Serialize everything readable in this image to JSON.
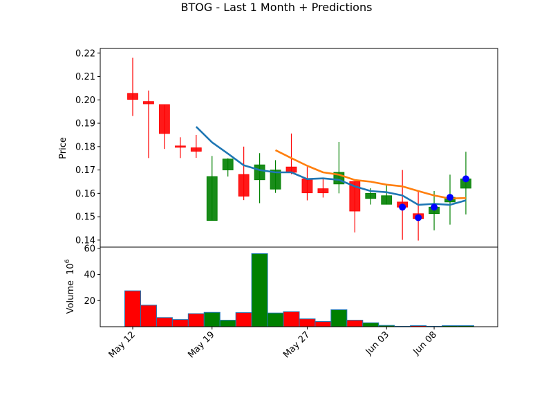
{
  "title": "BTOG - Last 1 Month + Predictions",
  "chart_data": [
    {
      "type": "candlestick",
      "ylabel": "Price",
      "ylim": [
        0.137,
        0.222
      ],
      "yticks": [
        "0.14",
        "0.15",
        "0.16",
        "0.17",
        "0.18",
        "0.19",
        "0.20",
        "0.21",
        "0.22"
      ],
      "ytick_values": [
        0.14,
        0.15,
        0.16,
        0.17,
        0.18,
        0.19,
        0.2,
        0.21,
        0.22
      ],
      "up_color": "#008000",
      "down_color": "#ff0000",
      "candles": [
        {
          "date": "2024-05-12",
          "open": 0.2028,
          "high": 0.218,
          "low": 0.1931,
          "close": 0.2002,
          "dir": "down"
        },
        {
          "date": "2024-05-13",
          "open": 0.1993,
          "high": 0.204,
          "low": 0.1751,
          "close": 0.1983,
          "dir": "down"
        },
        {
          "date": "2024-05-14",
          "open": 0.198,
          "high": 0.198,
          "low": 0.179,
          "close": 0.1856,
          "dir": "down"
        },
        {
          "date": "2024-05-15",
          "open": 0.1803,
          "high": 0.184,
          "low": 0.1751,
          "close": 0.1797,
          "dir": "down"
        },
        {
          "date": "2024-05-18",
          "open": 0.1795,
          "high": 0.185,
          "low": 0.1752,
          "close": 0.178,
          "dir": "down"
        },
        {
          "date": "2024-05-19",
          "open": 0.1484,
          "high": 0.176,
          "low": 0.1484,
          "close": 0.1672,
          "dir": "up"
        },
        {
          "date": "2024-05-20",
          "open": 0.17,
          "high": 0.175,
          "low": 0.1672,
          "close": 0.1747,
          "dir": "up"
        },
        {
          "date": "2024-05-21",
          "open": 0.1681,
          "high": 0.18,
          "low": 0.1571,
          "close": 0.1588,
          "dir": "down"
        },
        {
          "date": "2024-05-22",
          "open": 0.1658,
          "high": 0.1772,
          "low": 0.1558,
          "close": 0.1722,
          "dir": "up"
        },
        {
          "date": "2024-05-25",
          "open": 0.1618,
          "high": 0.1742,
          "low": 0.1602,
          "close": 0.17,
          "dir": "up"
        },
        {
          "date": "2024-05-26",
          "open": 0.1713,
          "high": 0.1856,
          "low": 0.1682,
          "close": 0.169,
          "dir": "down"
        },
        {
          "date": "2024-05-27",
          "open": 0.1662,
          "high": 0.1713,
          "low": 0.157,
          "close": 0.1602,
          "dir": "down"
        },
        {
          "date": "2024-05-28",
          "open": 0.162,
          "high": 0.1662,
          "low": 0.1582,
          "close": 0.1602,
          "dir": "down"
        },
        {
          "date": "2024-05-29",
          "open": 0.164,
          "high": 0.182,
          "low": 0.16,
          "close": 0.169,
          "dir": "up"
        },
        {
          "date": "2024-06-01",
          "open": 0.1651,
          "high": 0.1651,
          "low": 0.1433,
          "close": 0.1524,
          "dir": "down"
        },
        {
          "date": "2024-06-02",
          "open": 0.1578,
          "high": 0.1622,
          "low": 0.1552,
          "close": 0.16,
          "dir": "up"
        },
        {
          "date": "2024-06-03",
          "open": 0.1553,
          "high": 0.164,
          "low": 0.1552,
          "close": 0.159,
          "dir": "up"
        },
        {
          "date": "2024-06-04",
          "open": 0.1563,
          "high": 0.17,
          "low": 0.1401,
          "close": 0.1541,
          "dir": "down"
        },
        {
          "date": "2024-06-05",
          "open": 0.1513,
          "high": 0.161,
          "low": 0.1398,
          "close": 0.1492,
          "dir": "down"
        },
        {
          "date": "2024-06-08",
          "open": 0.1513,
          "high": 0.161,
          "low": 0.1442,
          "close": 0.1541,
          "dir": "up"
        },
        {
          "date": "2024-06-09",
          "open": 0.1563,
          "high": 0.168,
          "low": 0.1466,
          "close": 0.1583,
          "dir": "up"
        },
        {
          "date": "2024-06-10",
          "open": 0.1622,
          "high": 0.1778,
          "low": 0.151,
          "close": 0.1662,
          "dir": "up"
        }
      ],
      "predictions": [
        0.1541,
        0.1496,
        0.1541,
        0.1583,
        0.1662
      ],
      "prediction_marker_color": "#0000ff",
      "moving_averages": [
        {
          "color": "#1f77b4",
          "start_index": 4,
          "values": [
            0.1885,
            0.1818,
            0.177,
            0.172,
            0.17,
            0.169,
            0.169,
            0.1661,
            0.1664,
            0.1658,
            0.163,
            0.161,
            0.1605,
            0.1591,
            0.1551,
            0.1555,
            0.1551,
            0.157
          ]
        },
        {
          "color": "#ff7f0e",
          "start_index": 9,
          "values": [
            0.1785,
            0.1751,
            0.1718,
            0.169,
            0.168,
            0.1657,
            0.165,
            0.1637,
            0.163,
            0.161,
            0.1591,
            0.1578,
            0.158
          ]
        }
      ]
    },
    {
      "type": "bar",
      "ylabel": "Volume",
      "ylabel_exp": "6",
      "ylim": [
        0,
        61
      ],
      "yticks": [
        "20",
        "40",
        "60"
      ],
      "ytick_values": [
        20,
        40,
        60
      ],
      "values": [
        27.5,
        16.5,
        7.0,
        5.5,
        10.0,
        11.0,
        5.0,
        10.8,
        56.0,
        10.5,
        11.5,
        6.0,
        4.0,
        13.0,
        5.0,
        3.0,
        1.0,
        0.3,
        0.8,
        0.3,
        0.8,
        0.8
      ]
    }
  ],
  "x_axis": {
    "ticks": [
      {
        "label": "May 12",
        "date": "2024-05-12"
      },
      {
        "label": "May 19",
        "date": "2024-05-19"
      },
      {
        "label": "May 27",
        "date": "2024-05-27"
      },
      {
        "label": "Jun 03",
        "date": "2024-06-03"
      },
      {
        "label": "Jun 08",
        "date": "2024-06-08"
      }
    ]
  }
}
